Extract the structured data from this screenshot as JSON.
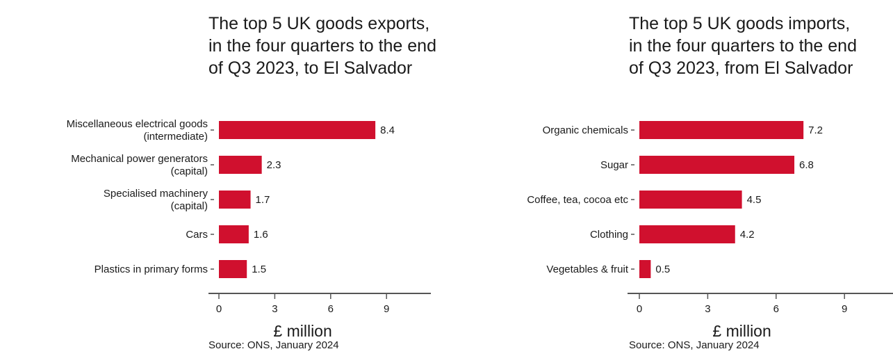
{
  "colors": {
    "bar": "#d0102e",
    "axis": "#555555",
    "text": "#1a1a1a"
  },
  "chart_data": [
    {
      "type": "bar",
      "orientation": "horizontal",
      "title": "The top 5 UK goods exports, in the four quarters to the end of Q3 2023, to El Salvador",
      "categories": [
        [
          "Miscellaneous electrical goods",
          "(intermediate)"
        ],
        [
          "Mechanical power generators",
          "(capital)"
        ],
        [
          "Specialised machinery",
          "(capital)"
        ],
        [
          "Cars"
        ],
        [
          "Plastics in primary forms"
        ]
      ],
      "values": [
        8.4,
        2.3,
        1.7,
        1.6,
        1.5
      ],
      "value_labels": [
        "8.4",
        "2.3",
        "1.7",
        "1.6",
        "1.5"
      ],
      "xlabel": "£ million",
      "xticks": [
        0,
        3,
        6,
        9
      ],
      "xlim": [
        0,
        11
      ],
      "source": "Source: ONS, January 2024"
    },
    {
      "type": "bar",
      "orientation": "horizontal",
      "title": "The top 5 UK goods imports, in the four quarters to the end of Q3 2023, from El Salvador",
      "categories": [
        [
          "Organic chemicals"
        ],
        [
          "Sugar"
        ],
        [
          "Coffee, tea, cocoa etc"
        ],
        [
          "Clothing"
        ],
        [
          "Vegetables & fruit"
        ]
      ],
      "values": [
        7.2,
        6.8,
        4.5,
        4.2,
        0.5
      ],
      "value_labels": [
        "7.2",
        "6.8",
        "4.5",
        "4.2",
        "0.5"
      ],
      "xlabel": "£ million",
      "xticks": [
        0,
        3,
        6,
        9
      ],
      "xlim": [
        0,
        11
      ],
      "source": "Source: ONS, January 2024"
    }
  ]
}
